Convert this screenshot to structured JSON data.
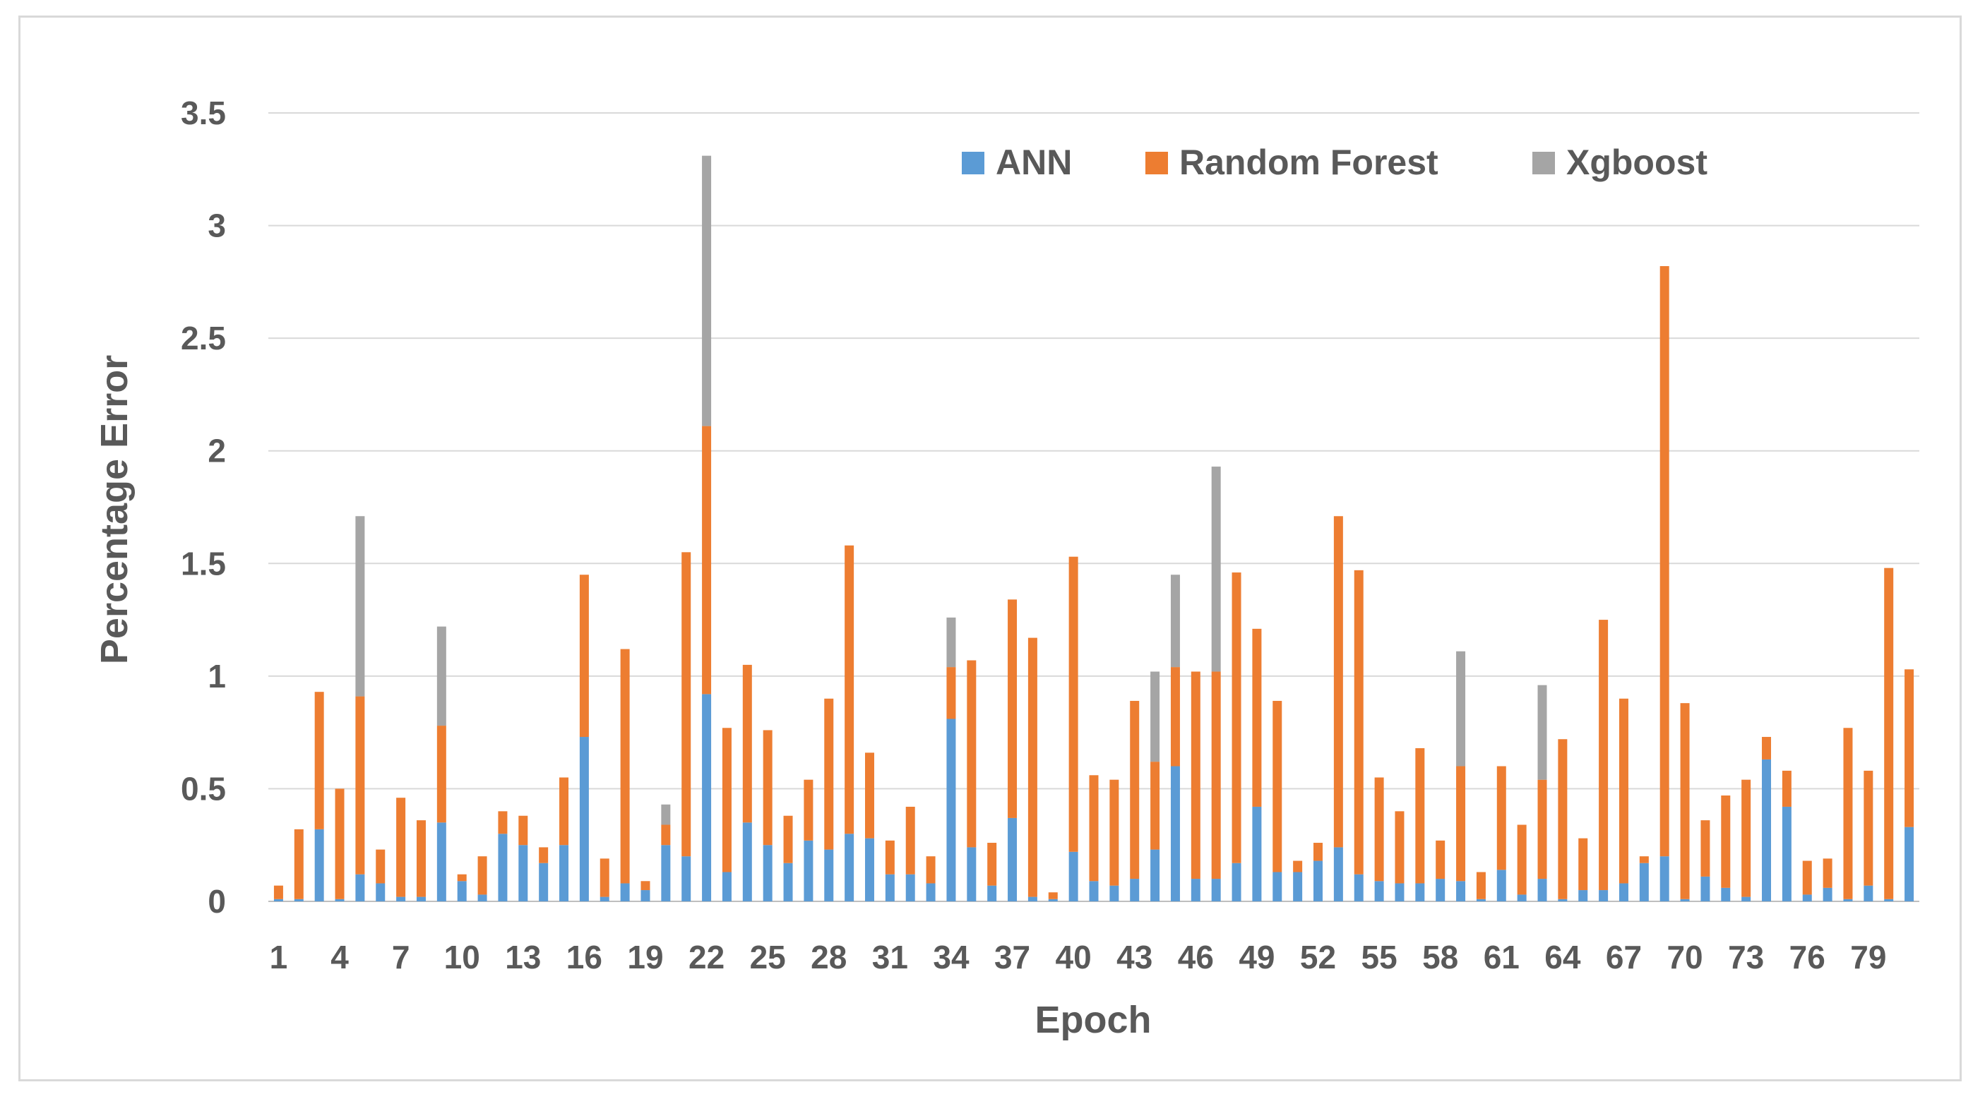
{
  "chart_data": {
    "type": "bar",
    "stacked": true,
    "title": "",
    "xlabel": "Epoch",
    "ylabel": "Percentage Error",
    "ylim": [
      0,
      3.5
    ],
    "yticks": [
      "0",
      "0.5",
      "1",
      "1.5",
      "2",
      "2.5",
      "3",
      "3.5"
    ],
    "grid": true,
    "legend_position": "top-right",
    "xtick_labels": [
      "1",
      "4",
      "7",
      "10",
      "13",
      "16",
      "19",
      "22",
      "25",
      "28",
      "31",
      "34",
      "37",
      "40",
      "43",
      "46",
      "49",
      "52",
      "55",
      "58",
      "61",
      "64",
      "67",
      "70",
      "73",
      "76",
      "79"
    ],
    "categories": [
      1,
      2,
      3,
      4,
      5,
      6,
      7,
      8,
      9,
      10,
      11,
      12,
      13,
      14,
      15,
      16,
      17,
      18,
      19,
      20,
      21,
      22,
      23,
      24,
      25,
      26,
      27,
      28,
      29,
      30,
      31,
      32,
      33,
      34,
      35,
      36,
      37,
      38,
      39,
      40,
      41,
      42,
      43,
      44,
      45,
      46,
      47,
      48,
      49,
      50,
      51,
      52,
      53,
      54,
      55,
      56,
      57,
      58,
      59,
      60,
      61,
      62,
      63,
      64,
      65,
      66,
      67,
      68,
      69,
      70,
      71,
      72,
      73,
      74,
      75,
      76,
      77,
      78,
      79,
      80,
      81
    ],
    "series": [
      {
        "name": "ANN",
        "color": "#5b9bd5",
        "values": [
          0.01,
          0.01,
          0.32,
          0.01,
          0.12,
          0.08,
          0.02,
          0.02,
          0.35,
          0.09,
          0.03,
          0.3,
          0.25,
          0.17,
          0.25,
          0.73,
          0.02,
          0.08,
          0.05,
          0.25,
          0.2,
          0.92,
          0.13,
          0.35,
          0.25,
          0.17,
          0.27,
          0.23,
          0.3,
          0.28,
          0.12,
          0.12,
          0.08,
          0.81,
          0.24,
          0.07,
          0.37,
          0.02,
          0.01,
          0.22,
          0.09,
          0.07,
          0.1,
          0.23,
          0.6,
          0.1,
          0.1,
          0.17,
          0.42,
          0.13,
          0.13,
          0.18,
          0.24,
          0.12,
          0.09,
          0.08,
          0.08,
          0.1,
          0.09,
          0.01,
          0.14,
          0.03,
          0.1,
          0.01,
          0.05,
          0.05,
          0.08,
          0.17,
          0.2,
          0.01,
          0.11,
          0.06,
          0.02,
          0.63,
          0.42,
          0.03,
          0.06,
          0.01,
          0.07,
          0.01,
          0.33
        ]
      },
      {
        "name": "Random Forest",
        "color": "#ed7d31",
        "values": [
          0.06,
          0.31,
          0.61,
          0.49,
          0.79,
          0.15,
          0.44,
          0.34,
          0.43,
          0.03,
          0.17,
          0.1,
          0.13,
          0.07,
          0.3,
          0.72,
          0.17,
          1.04,
          0.04,
          0.09,
          1.35,
          1.19,
          0.64,
          0.7,
          0.51,
          0.21,
          0.27,
          0.67,
          1.28,
          0.38,
          0.15,
          0.3,
          0.12,
          0.23,
          0.83,
          0.19,
          0.97,
          1.15,
          0.03,
          1.31,
          0.47,
          0.47,
          0.79,
          0.39,
          0.44,
          0.92,
          0.92,
          1.29,
          0.79,
          0.76,
          0.05,
          0.08,
          1.47,
          1.35,
          0.46,
          0.32,
          0.6,
          0.17,
          0.51,
          0.12,
          0.46,
          0.31,
          0.44,
          0.71,
          0.23,
          1.2,
          0.82,
          0.03,
          2.62,
          0.87,
          0.25,
          0.41,
          0.52,
          0.1,
          0.16,
          0.15,
          0.13,
          0.76,
          0.51,
          1.47,
          0.7
        ]
      },
      {
        "name": "Xgboost",
        "color": "#a5a5a5",
        "values": [
          0,
          0,
          0,
          0,
          0.8,
          0,
          0,
          0,
          0.44,
          0,
          0,
          0,
          0,
          0,
          0,
          0,
          0,
          0,
          0,
          0.09,
          0,
          1.2,
          0,
          0,
          0,
          0,
          0,
          0,
          0,
          0,
          0,
          0,
          0,
          0.22,
          0,
          0,
          0,
          0,
          0,
          0,
          0,
          0,
          0,
          0.4,
          0.41,
          0,
          0.91,
          0,
          0,
          0,
          0,
          0,
          0,
          0,
          0,
          0,
          0,
          0,
          0.51,
          0,
          0,
          0,
          0.42,
          0,
          0,
          0,
          0,
          0,
          0,
          0,
          0,
          0,
          0,
          0,
          0,
          0,
          0,
          0,
          0,
          0,
          0
        ]
      }
    ]
  }
}
